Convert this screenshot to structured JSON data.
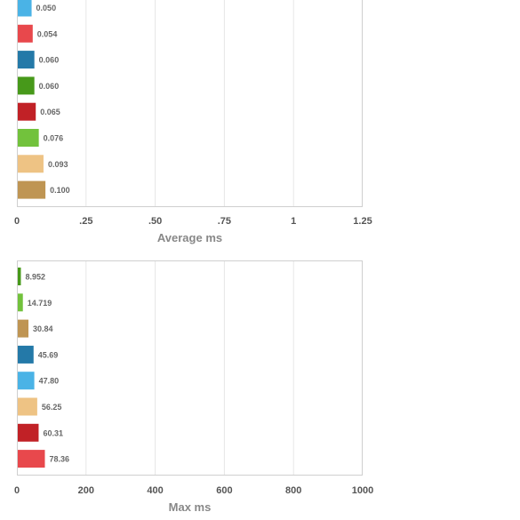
{
  "chart_data": [
    {
      "type": "bar",
      "orientation": "horizontal",
      "title": "",
      "xlabel": "Average ms",
      "ylabel": "",
      "xlim": [
        0,
        1.25
      ],
      "ticks": [
        {
          "value": 0,
          "label": "0"
        },
        {
          "value": 0.25,
          "label": ".25"
        },
        {
          "value": 0.5,
          "label": ".50"
        },
        {
          "value": 0.75,
          "label": ".75"
        },
        {
          "value": 1,
          "label": "1"
        },
        {
          "value": 1.25,
          "label": "1.25"
        }
      ],
      "grid": true,
      "legend": "none",
      "bars": [
        {
          "value": 0.05,
          "label": "0.050",
          "color": "#4ab3e6"
        },
        {
          "value": 0.054,
          "label": "0.054",
          "color": "#e8484c"
        },
        {
          "value": 0.06,
          "label": "0.060",
          "color": "#2479a8"
        },
        {
          "value": 0.06,
          "label": "0.060",
          "color": "#47991a"
        },
        {
          "value": 0.065,
          "label": "0.065",
          "color": "#c12126"
        },
        {
          "value": 0.076,
          "label": "0.076",
          "color": "#72c23c"
        },
        {
          "value": 0.093,
          "label": "0.093",
          "color": "#eec384"
        },
        {
          "value": 0.1,
          "label": "0.100",
          "color": "#bf9553"
        }
      ]
    },
    {
      "type": "bar",
      "orientation": "horizontal",
      "title": "",
      "xlabel": "Max ms",
      "ylabel": "",
      "xlim": [
        0,
        1000
      ],
      "ticks": [
        {
          "value": 0,
          "label": "0"
        },
        {
          "value": 200,
          "label": "200"
        },
        {
          "value": 400,
          "label": "400"
        },
        {
          "value": 600,
          "label": "600"
        },
        {
          "value": 800,
          "label": "800"
        },
        {
          "value": 1000,
          "label": "1000"
        }
      ],
      "grid": true,
      "legend": "none",
      "bars": [
        {
          "value": 8.952,
          "label": "8.952",
          "color": "#47991a"
        },
        {
          "value": 14.719,
          "label": "14.719",
          "color": "#72c23c"
        },
        {
          "value": 30.84,
          "label": "30.84",
          "color": "#bf9553"
        },
        {
          "value": 45.69,
          "label": "45.69",
          "color": "#2479a8"
        },
        {
          "value": 47.8,
          "label": "47.80",
          "color": "#4ab3e6"
        },
        {
          "value": 56.25,
          "label": "56.25",
          "color": "#eec384"
        },
        {
          "value": 60.31,
          "label": "60.31",
          "color": "#c12126"
        },
        {
          "value": 78.36,
          "label": "78.36",
          "color": "#e8484c"
        }
      ]
    }
  ]
}
